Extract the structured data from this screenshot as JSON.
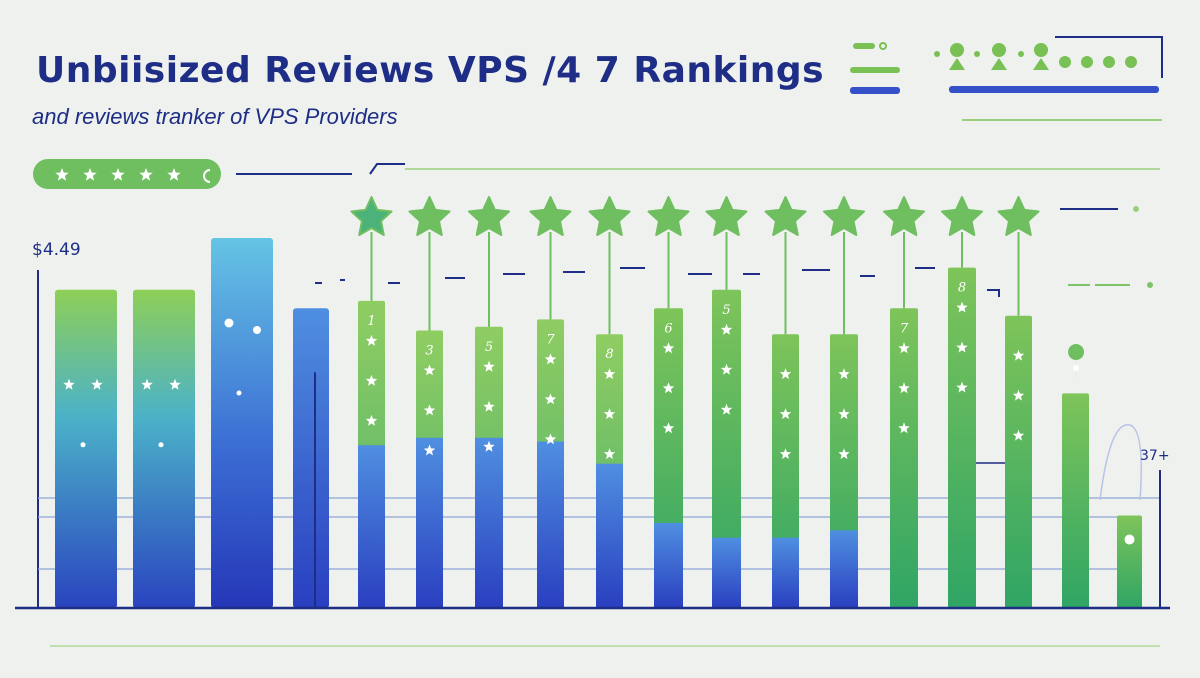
{
  "header": {
    "title": "Unbiisized Reviews VPS /4 7 Rankings",
    "subtitle": "and reviews tranker of VPS Providers"
  },
  "rating_pill": {
    "stars": 5
  },
  "colors": {
    "navy": "#1e2d86",
    "green": "#79c055",
    "blue": "#3550c8",
    "light_blue": "#5fc0df"
  },
  "chart_data": {
    "type": "bar",
    "title": "Unbiisized Reviews VPS /4 7 Rankings",
    "subtitle": "and reviews tranker of VPS Providers",
    "ylabel": "$4.49",
    "right_label": "37+",
    "ylim": [
      0,
      100
    ],
    "grid": false,
    "bars": [
      {
        "value": 86,
        "top_label": "",
        "star_icon": false,
        "lower_segment": 0
      },
      {
        "value": 86,
        "top_label": "",
        "star_icon": false,
        "lower_segment": 0
      },
      {
        "value": 100,
        "top_label": "",
        "star_icon": false,
        "lower_segment": 0
      },
      {
        "value": 81,
        "top_label": "",
        "star_icon": false,
        "lower_segment": 0
      },
      {
        "value": 83,
        "top_label": "1",
        "star_icon": true,
        "lower_segment": 44
      },
      {
        "value": 75,
        "top_label": "3",
        "star_icon": true,
        "lower_segment": 46
      },
      {
        "value": 76,
        "top_label": "5",
        "star_icon": true,
        "lower_segment": 46
      },
      {
        "value": 78,
        "top_label": "7",
        "star_icon": true,
        "lower_segment": 45
      },
      {
        "value": 74,
        "top_label": "8",
        "star_icon": true,
        "lower_segment": 39
      },
      {
        "value": 81,
        "top_label": "6",
        "star_icon": true,
        "lower_segment": 23
      },
      {
        "value": 86,
        "top_label": "5",
        "star_icon": true,
        "lower_segment": 19
      },
      {
        "value": 74,
        "top_label": "",
        "star_icon": true,
        "lower_segment": 19
      },
      {
        "value": 74,
        "top_label": "",
        "star_icon": true,
        "lower_segment": 21
      },
      {
        "value": 81,
        "top_label": "7",
        "star_icon": true,
        "lower_segment": 0
      },
      {
        "value": 92,
        "top_label": "8",
        "star_icon": true,
        "lower_segment": 0
      },
      {
        "value": 79,
        "top_label": "",
        "star_icon": true,
        "lower_segment": 0
      },
      {
        "value": 58,
        "top_label": "",
        "star_icon": false,
        "lower_segment": 0
      },
      {
        "value": 25,
        "top_label": "",
        "star_icon": false,
        "lower_segment": 0
      }
    ]
  }
}
